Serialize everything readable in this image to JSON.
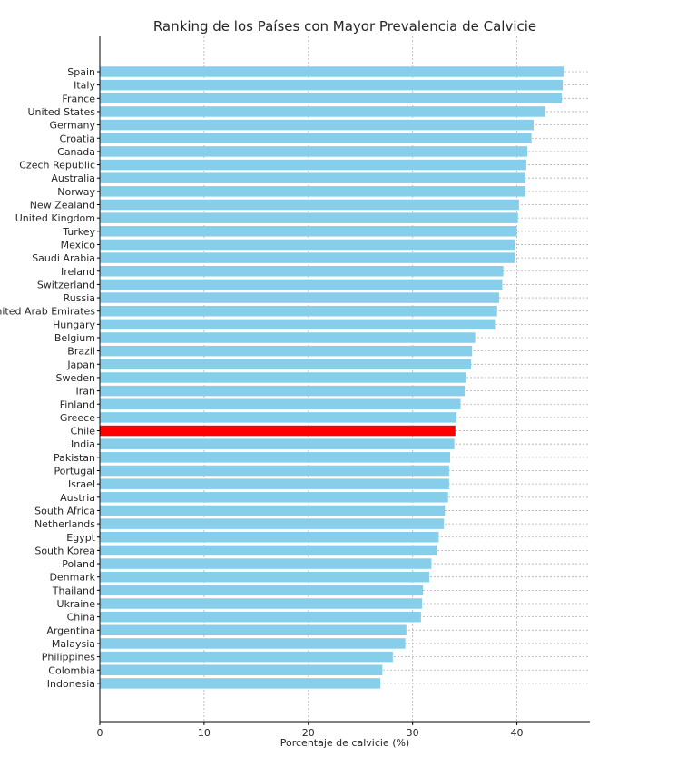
{
  "chart_data": {
    "type": "bar",
    "orientation": "horizontal",
    "title": "Ranking de los Países con Mayor Prevalencia de Calvicie",
    "xlabel": "Porcentaje de calvicie (%)",
    "ylabel": "",
    "xlim": [
      0,
      47
    ],
    "xticks": [
      0,
      10,
      20,
      30,
      40
    ],
    "grid": true,
    "categories": [
      "Spain",
      "Italy",
      "France",
      "United States",
      "Germany",
      "Croatia",
      "Canada",
      "Czech Republic",
      "Australia",
      "Norway",
      "New Zealand",
      "United Kingdom",
      "Turkey",
      "Mexico",
      "Saudi Arabia",
      "Ireland",
      "Switzerland",
      "Russia",
      "United Arab Emirates",
      "Hungary",
      "Belgium",
      "Brazil",
      "Japan",
      "Sweden",
      "Iran",
      "Finland",
      "Greece",
      "Chile",
      "India",
      "Pakistan",
      "Portugal",
      "Israel",
      "Austria",
      "South Africa",
      "Netherlands",
      "Egypt",
      "South Korea",
      "Poland",
      "Denmark",
      "Thailand",
      "Ukraine",
      "China",
      "Argentina",
      "Malaysia",
      "Philippines",
      "Colombia",
      "Indonesia"
    ],
    "values": [
      44.5,
      44.4,
      44.3,
      42.7,
      41.6,
      41.4,
      41.0,
      40.9,
      40.8,
      40.8,
      40.2,
      40.1,
      40.0,
      39.8,
      39.8,
      38.7,
      38.6,
      38.3,
      38.1,
      37.9,
      36.0,
      35.7,
      35.6,
      35.1,
      35.0,
      34.6,
      34.2,
      34.1,
      34.0,
      33.6,
      33.5,
      33.5,
      33.4,
      33.1,
      33.0,
      32.5,
      32.3,
      31.8,
      31.6,
      31.0,
      30.9,
      30.8,
      29.4,
      29.3,
      28.1,
      27.1,
      26.9
    ],
    "bar_color": "#87CEEB",
    "highlight_category": "Chile",
    "highlight_color": "#FF0000"
  }
}
